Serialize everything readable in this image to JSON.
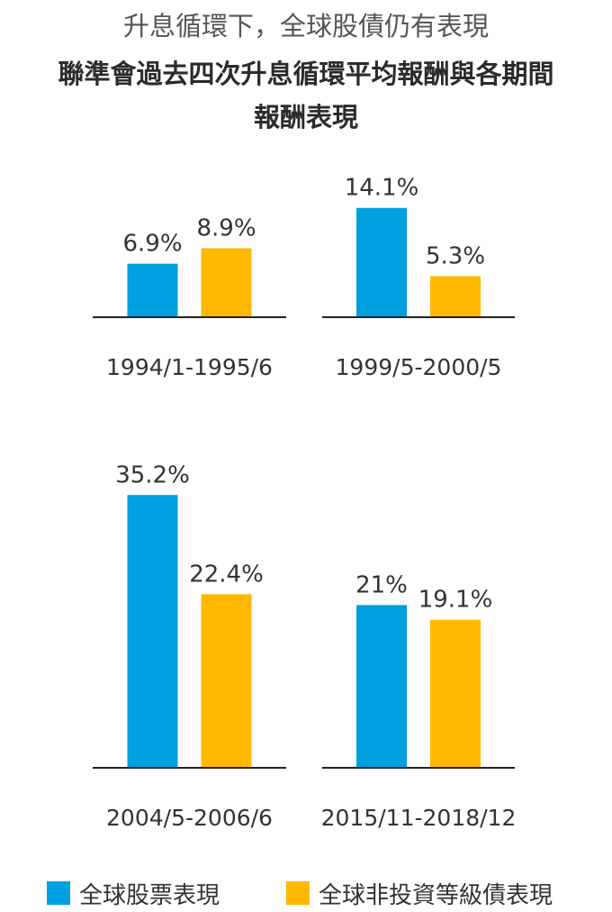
{
  "subtitle": "升息循環下，全球股債仍有表現",
  "title_lines": [
    "聯準會過去四次升息循環平均報酬與各期間",
    "報酬表現"
  ],
  "colors": {
    "equity": "#009fdf",
    "bond": "#ffb800",
    "axis": "#222222",
    "label": "#333333"
  },
  "legend": [
    {
      "label": "全球股票表現",
      "color": "#009fdf"
    },
    {
      "label": "全球非投資等級債表現",
      "color": "#ffb800"
    }
  ],
  "chart_data": [
    {
      "type": "bar",
      "period": "1994/1-1995/6",
      "series": [
        {
          "name": "全球股票表現",
          "value": 6.9,
          "label": "6.9%"
        },
        {
          "name": "全球非投資等級債表現",
          "value": 8.9,
          "label": "8.9%"
        }
      ]
    },
    {
      "type": "bar",
      "period": "1999/5-2000/5",
      "series": [
        {
          "name": "全球股票表現",
          "value": 14.1,
          "label": "14.1%"
        },
        {
          "name": "全球非投資等級債表現",
          "value": 5.3,
          "label": "5.3%"
        }
      ]
    },
    {
      "type": "bar",
      "period": "2004/5-2006/6",
      "series": [
        {
          "name": "全球股票表現",
          "value": 35.2,
          "label": "35.2%"
        },
        {
          "name": "全球非投資等級債表現",
          "value": 22.4,
          "label": "22.4%"
        }
      ]
    },
    {
      "type": "bar",
      "period": "2015/11-2018/12",
      "series": [
        {
          "name": "全球股票表現",
          "value": 21,
          "label": "21%"
        },
        {
          "name": "全球非投資等級債表現",
          "value": 19.1,
          "label": "19.1%"
        }
      ]
    }
  ]
}
